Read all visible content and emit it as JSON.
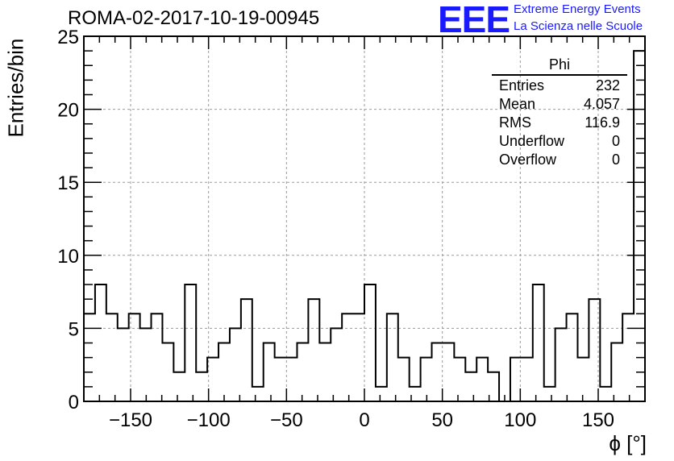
{
  "title": "ROMA-02-2017-10-19-00945",
  "logo": {
    "mark": "EEE",
    "line1": "Extreme Energy Events",
    "line2": "La Scienza nelle Scuole",
    "color": "#1a1aff"
  },
  "stats": {
    "name": "Phi",
    "rows": [
      {
        "label": "Entries",
        "value": "232"
      },
      {
        "label": "Mean",
        "value": "4.057"
      },
      {
        "label": "RMS",
        "value": "116.9"
      },
      {
        "label": "Underflow",
        "value": "0"
      },
      {
        "label": "Overflow",
        "value": "0"
      }
    ]
  },
  "chart_data": {
    "type": "bar",
    "title": "ROMA-02-2017-10-19-00945",
    "xlabel": "ϕ [°]",
    "ylabel": "Entries/bin",
    "xlim": [
      -180,
      180
    ],
    "ylim": [
      0,
      25
    ],
    "bin_width": 7.2,
    "x_ticks": [
      -150,
      -100,
      -50,
      0,
      50,
      100,
      150
    ],
    "y_ticks": [
      0,
      5,
      10,
      15,
      20,
      25
    ],
    "grid": true,
    "values": [
      6,
      8,
      6,
      5,
      6,
      5,
      6,
      4,
      2,
      8,
      2,
      3,
      4,
      5,
      7,
      1,
      4,
      3,
      3,
      4,
      7,
      4,
      5,
      6,
      6,
      8,
      1,
      6,
      3,
      1,
      3,
      4,
      4,
      3,
      2,
      3,
      2,
      0,
      3,
      3,
      8,
      1,
      5,
      6,
      3,
      7,
      1,
      4,
      6,
      24
    ]
  }
}
